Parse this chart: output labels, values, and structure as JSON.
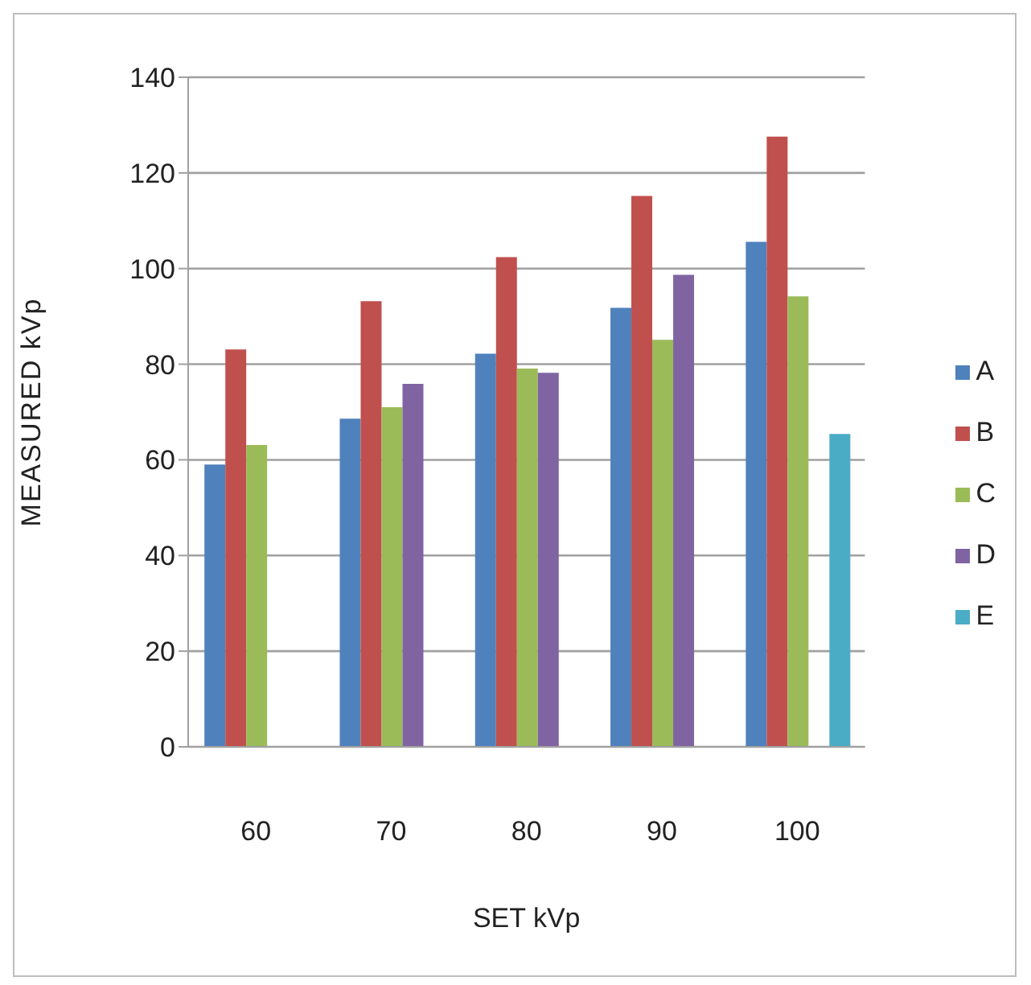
{
  "chart_data": {
    "type": "bar",
    "xlabel": "SET kVp",
    "ylabel": "MEASURED kVp",
    "categories": [
      "60",
      "70",
      "80",
      "90",
      "100"
    ],
    "series": [
      {
        "name": "A",
        "color": "#4f81bd",
        "values": [
          59.0,
          68.6,
          82.2,
          91.8,
          105.6
        ]
      },
      {
        "name": "B",
        "color": "#c0504d",
        "values": [
          83.1,
          93.2,
          102.4,
          115.2,
          127.6
        ]
      },
      {
        "name": "C",
        "color": "#9bbb59",
        "values": [
          63.1,
          71.0,
          79.1,
          85.1,
          94.2
        ]
      },
      {
        "name": "D",
        "color": "#8064a2",
        "values": [
          null,
          75.9,
          78.2,
          98.7,
          null
        ]
      },
      {
        "name": "E",
        "color": "#4bacc6",
        "values": [
          null,
          null,
          null,
          null,
          65.4
        ]
      }
    ],
    "ylim": [
      0,
      140
    ],
    "yticks": [
      0,
      20,
      40,
      60,
      80,
      100,
      120,
      140
    ],
    "grid": "y",
    "legend": "right"
  }
}
